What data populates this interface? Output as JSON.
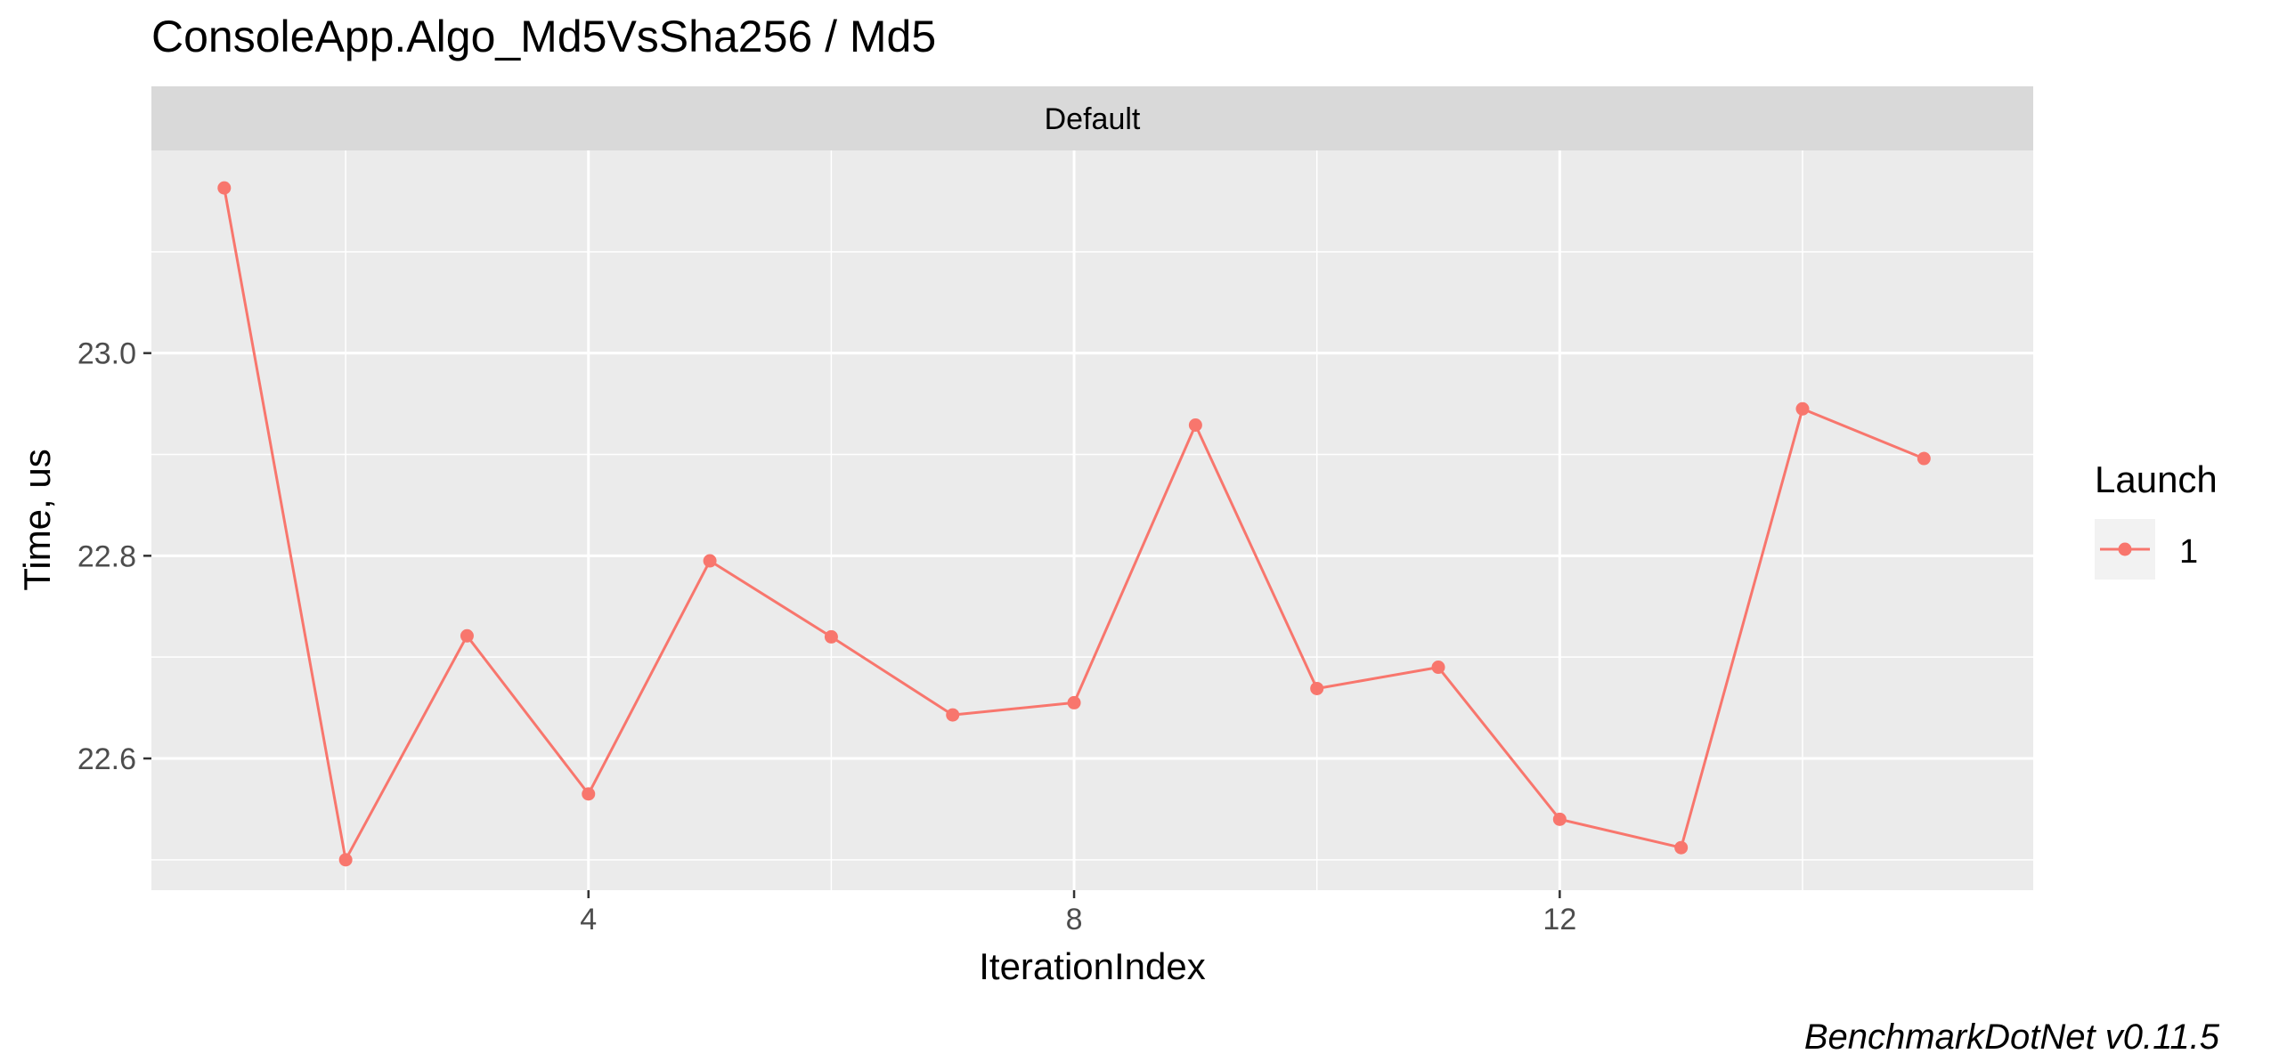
{
  "chart_data": {
    "type": "line",
    "title": "ConsoleApp.Algo_Md5VsSha256 / Md5",
    "facet_label": "Default",
    "xlabel": "IterationIndex",
    "ylabel": "Time, us",
    "caption": "BenchmarkDotNet v0.11.5",
    "xlim": [
      0.4,
      15.9
    ],
    "ylim": [
      22.47,
      23.2
    ],
    "x_ticks": [
      4,
      8,
      12
    ],
    "x_tick_labels": [
      "4",
      "8",
      "12"
    ],
    "x_minor": [
      2,
      6,
      10,
      14
    ],
    "y_ticks": [
      22.6,
      22.8,
      23.0
    ],
    "y_tick_labels": [
      "22.6",
      "22.8",
      "23.0"
    ],
    "y_minor": [
      22.5,
      22.7,
      22.9,
      23.1
    ],
    "grid": true,
    "legend": {
      "title": "Launch",
      "position": "right"
    },
    "series": [
      {
        "name": "1",
        "color": "#f8766d",
        "x": [
          1,
          2,
          3,
          4,
          5,
          6,
          7,
          8,
          9,
          10,
          11,
          12,
          13,
          14,
          15
        ],
        "values": [
          23.163,
          22.5,
          22.721,
          22.565,
          22.795,
          22.72,
          22.643,
          22.655,
          22.929,
          22.669,
          22.69,
          22.54,
          22.512,
          22.945,
          22.896
        ]
      }
    ],
    "colors": {
      "panel": "#ebebeb",
      "strip": "#d9d9d9",
      "grid": "#ffffff",
      "legend_key": "#f2f2f2"
    }
  }
}
